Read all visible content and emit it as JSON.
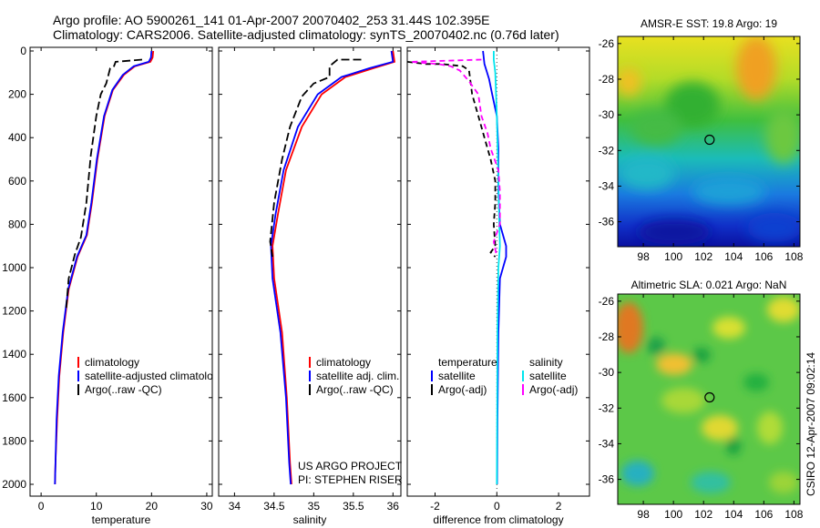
{
  "title": {
    "line1": "Argo profile: AO 5900261_141 01-Apr-2007 20070402_253 31.44S 102.395E",
    "line2": "Climatology: CARS2006. Satellite-adjusted climatology: synTS_20070402.nc (0.76d later)"
  },
  "credit": {
    "project": "US ARGO PROJECT",
    "pi": "PI: STEPHEN RISER",
    "stamp": "CSIRO 12-Apr-2007 09:02:14"
  },
  "colors": {
    "climatology": "#ff0000",
    "satellite": "#0000ff",
    "argo": "#000000",
    "sal_satellite": "#00e5ee",
    "sal_argo": "#ff00ff"
  },
  "chart_data": [
    {
      "type": "line",
      "id": "temperature",
      "xlabel": "temperature",
      "ylabel": "",
      "xlim": [
        -2,
        31
      ],
      "ylim": [
        2000,
        0
      ],
      "xticks": [
        0,
        10,
        20,
        30
      ],
      "yticks": [
        0,
        200,
        400,
        600,
        800,
        1000,
        1200,
        1400,
        1600,
        1800,
        2000
      ],
      "legend": [
        "climatology",
        "satellite-adjusted climatolo",
        "Argo(..raw -QC)"
      ],
      "series": [
        {
          "name": "climatology",
          "color": "#ff0000",
          "dash": "",
          "points": [
            [
              20.3,
              0
            ],
            [
              20.2,
              30
            ],
            [
              19.8,
              50
            ],
            [
              17,
              70
            ],
            [
              15,
              110
            ],
            [
              13,
              180
            ],
            [
              11.5,
              300
            ],
            [
              10.2,
              500
            ],
            [
              9.2,
              700
            ],
            [
              8.3,
              850
            ],
            [
              6.6,
              950
            ],
            [
              5.0,
              1100
            ],
            [
              4.0,
              1300
            ],
            [
              3.3,
              1500
            ],
            [
              2.9,
              1700
            ],
            [
              2.6,
              1900
            ],
            [
              2.5,
              2000
            ]
          ]
        },
        {
          "name": "satellite-adjusted climatology",
          "color": "#0000ff",
          "dash": "",
          "points": [
            [
              20.0,
              0
            ],
            [
              19.9,
              30
            ],
            [
              19.5,
              50
            ],
            [
              16.8,
              70
            ],
            [
              14.8,
              110
            ],
            [
              12.9,
              180
            ],
            [
              11.4,
              300
            ],
            [
              10.1,
              500
            ],
            [
              9.1,
              700
            ],
            [
              8.2,
              850
            ],
            [
              6.5,
              950
            ],
            [
              4.9,
              1100
            ],
            [
              3.9,
              1300
            ],
            [
              3.2,
              1500
            ],
            [
              2.8,
              1700
            ],
            [
              2.6,
              1900
            ],
            [
              2.5,
              2000
            ]
          ]
        },
        {
          "name": "Argo",
          "color": "#000000",
          "dash": "9,4",
          "points": [
            [
              18.3,
              40
            ],
            [
              13.5,
              50
            ],
            [
              13.2,
              70
            ],
            [
              12.5,
              80
            ],
            [
              11.8,
              150
            ],
            [
              10.8,
              200
            ],
            [
              10.0,
              300
            ],
            [
              9.0,
              480
            ],
            [
              8.2,
              700
            ],
            [
              7.2,
              860
            ],
            [
              6.1,
              940
            ],
            [
              5.0,
              1050
            ],
            [
              4.5,
              1200
            ]
          ]
        }
      ]
    },
    {
      "type": "line",
      "id": "salinity",
      "xlabel": "salinity",
      "ylabel": "",
      "xlim": [
        33.8,
        36.1
      ],
      "ylim": [
        2000,
        0
      ],
      "xticks": [
        34,
        34.5,
        35,
        35.5,
        36
      ],
      "legend": [
        "climatology",
        "satellite adj. clim.",
        "Argo(..raw -QC)"
      ],
      "series": [
        {
          "name": "climatology",
          "color": "#ff0000",
          "dash": "",
          "points": [
            [
              36.0,
              0
            ],
            [
              36.02,
              50
            ],
            [
              35.75,
              80
            ],
            [
              35.4,
              120
            ],
            [
              35.1,
              200
            ],
            [
              34.85,
              350
            ],
            [
              34.65,
              550
            ],
            [
              34.55,
              750
            ],
            [
              34.48,
              900
            ],
            [
              34.5,
              1050
            ],
            [
              34.6,
              1300
            ],
            [
              34.66,
              1600
            ],
            [
              34.7,
              1900
            ],
            [
              34.72,
              2000
            ]
          ]
        },
        {
          "name": "satellite adj. clim.",
          "color": "#0000ff",
          "dash": "",
          "points": [
            [
              35.98,
              0
            ],
            [
              36.0,
              50
            ],
            [
              35.7,
              80
            ],
            [
              35.35,
              120
            ],
            [
              35.05,
              200
            ],
            [
              34.8,
              350
            ],
            [
              34.62,
              550
            ],
            [
              34.52,
              750
            ],
            [
              34.46,
              900
            ],
            [
              34.48,
              1050
            ],
            [
              34.58,
              1300
            ],
            [
              34.65,
              1600
            ],
            [
              34.69,
              1900
            ],
            [
              34.71,
              2000
            ]
          ]
        },
        {
          "name": "Argo",
          "color": "#000000",
          "dash": "9,4",
          "points": [
            [
              35.6,
              40
            ],
            [
              35.3,
              40
            ],
            [
              35.2,
              70
            ],
            [
              35.2,
              120
            ],
            [
              35.0,
              150
            ],
            [
              34.85,
              210
            ],
            [
              34.7,
              350
            ],
            [
              34.6,
              500
            ],
            [
              34.5,
              700
            ],
            [
              34.45,
              880
            ],
            [
              34.48,
              950
            ]
          ]
        }
      ]
    },
    {
      "type": "line",
      "id": "difference",
      "xlabel": "difference from climatology",
      "ylabel": "",
      "xlim": [
        -2.9,
        3
      ],
      "ylim": [
        2000,
        0
      ],
      "xticks": [
        -2,
        0,
        2
      ],
      "legend": [
        "temperature",
        "satellite",
        "Argo(-adj)",
        "salinity",
        "satellite",
        "Argo(-adj)"
      ],
      "series": [
        {
          "name": "temperature satellite",
          "color": "#0000ff",
          "dash": "",
          "points": [
            [
              -0.45,
              0
            ],
            [
              -0.4,
              60
            ],
            [
              -0.25,
              130
            ],
            [
              -0.15,
              200
            ],
            [
              0.0,
              300
            ],
            [
              0.05,
              450
            ],
            [
              0.05,
              650
            ],
            [
              0.1,
              800
            ],
            [
              0.3,
              900
            ],
            [
              0.3,
              950
            ],
            [
              0.1,
              1050
            ],
            [
              0.05,
              1300
            ],
            [
              0.02,
              1700
            ],
            [
              0.01,
              2000
            ]
          ]
        },
        {
          "name": "temperature Argo",
          "color": "#000000",
          "dash": "6,4",
          "points": [
            [
              -2.9,
              50
            ],
            [
              -2.3,
              60
            ],
            [
              -1.8,
              60
            ],
            [
              -1.1,
              70
            ],
            [
              -0.9,
              90
            ],
            [
              -0.8,
              200
            ],
            [
              -0.6,
              300
            ],
            [
              -0.4,
              400
            ],
            [
              -0.2,
              500
            ],
            [
              -0.05,
              600
            ],
            [
              -0.05,
              700
            ],
            [
              -0.1,
              800
            ],
            [
              -0.05,
              900
            ],
            [
              -0.2,
              930
            ],
            [
              -0.05,
              950
            ]
          ]
        },
        {
          "name": "salinity satellite",
          "color": "#00e5ee",
          "dash": "",
          "points": [
            [
              -0.1,
              0
            ],
            [
              -0.1,
              40
            ],
            [
              -0.05,
              100
            ],
            [
              0.0,
              300
            ],
            [
              0.05,
              600
            ],
            [
              0.08,
              800
            ],
            [
              0.1,
              900
            ],
            [
              0.05,
              1000
            ],
            [
              0.02,
              1300
            ],
            [
              0.01,
              1700
            ],
            [
              0.0,
              2000
            ]
          ]
        },
        {
          "name": "salinity Argo",
          "color": "#ff00ff",
          "dash": "6,4",
          "points": [
            [
              -0.5,
              40
            ],
            [
              -2.8,
              50
            ],
            [
              -1.9,
              60
            ],
            [
              -1.5,
              70
            ],
            [
              -1.2,
              90
            ],
            [
              -0.9,
              140
            ],
            [
              -0.6,
              200
            ],
            [
              -0.5,
              300
            ],
            [
              -0.3,
              380
            ],
            [
              -0.2,
              450
            ],
            [
              0.05,
              550
            ],
            [
              0.1,
              650
            ],
            [
              0.1,
              800
            ],
            [
              -0.1,
              880
            ],
            [
              0.0,
              950
            ]
          ]
        }
      ]
    },
    {
      "type": "heatmap",
      "id": "sst_map",
      "title": "AMSR-E SST: 19.8 Argo: 19",
      "xlim": [
        96.3,
        108.4
      ],
      "ylim": [
        -37.4,
        -25.6
      ],
      "xticks": [
        98,
        100,
        102,
        104,
        106,
        108
      ],
      "yticks": [
        -26,
        -28,
        -30,
        -32,
        -34,
        -36
      ],
      "marker": [
        102.4,
        -31.4
      ]
    },
    {
      "type": "heatmap",
      "id": "sla_map",
      "title": "Altimetric SLA: 0.021 Argo: NaN",
      "xlim": [
        96.3,
        108.4
      ],
      "ylim": [
        -37.4,
        -25.6
      ],
      "xticks": [
        98,
        100,
        102,
        104,
        106,
        108
      ],
      "yticks": [
        -26,
        -28,
        -30,
        -32,
        -34,
        -36
      ],
      "marker": [
        102.4,
        -31.4
      ]
    }
  ]
}
